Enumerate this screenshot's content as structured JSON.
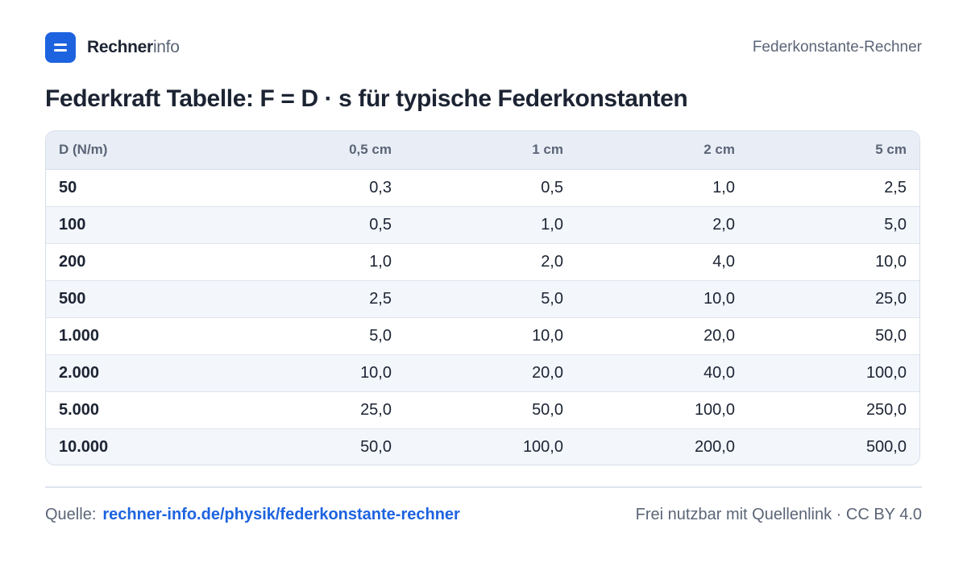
{
  "header": {
    "brand_bold": "Rechner",
    "brand_light": "info",
    "page_name": "Federkonstante-Rechner"
  },
  "title": "Federkraft Tabelle: F = D · s für typische Federkonstanten",
  "table": {
    "columns": [
      "D (N/m)",
      "0,5 cm",
      "1 cm",
      "2 cm",
      "5 cm"
    ],
    "rows": [
      [
        "50",
        "0,3",
        "0,5",
        "1,0",
        "2,5"
      ],
      [
        "100",
        "0,5",
        "1,0",
        "2,0",
        "5,0"
      ],
      [
        "200",
        "1,0",
        "2,0",
        "4,0",
        "10,0"
      ],
      [
        "500",
        "2,5",
        "5,0",
        "10,0",
        "25,0"
      ],
      [
        "1.000",
        "5,0",
        "10,0",
        "20,0",
        "50,0"
      ],
      [
        "2.000",
        "10,0",
        "20,0",
        "40,0",
        "100,0"
      ],
      [
        "5.000",
        "25,0",
        "50,0",
        "100,0",
        "250,0"
      ],
      [
        "10.000",
        "50,0",
        "100,0",
        "200,0",
        "500,0"
      ]
    ]
  },
  "footer": {
    "source_label": "Quelle:",
    "source_link": "rechner-info.de/physik/federkonstante-rechner",
    "license": "Frei nutzbar mit Quellenlink · CC BY 4.0"
  },
  "colors": {
    "accent": "#1d63e0",
    "text": "#1c2433",
    "muted": "#5b6577",
    "header_bg": "#e9eef6",
    "row_alt_bg": "#f3f6fb"
  },
  "icons": {
    "logo": "equals-logo-icon"
  }
}
